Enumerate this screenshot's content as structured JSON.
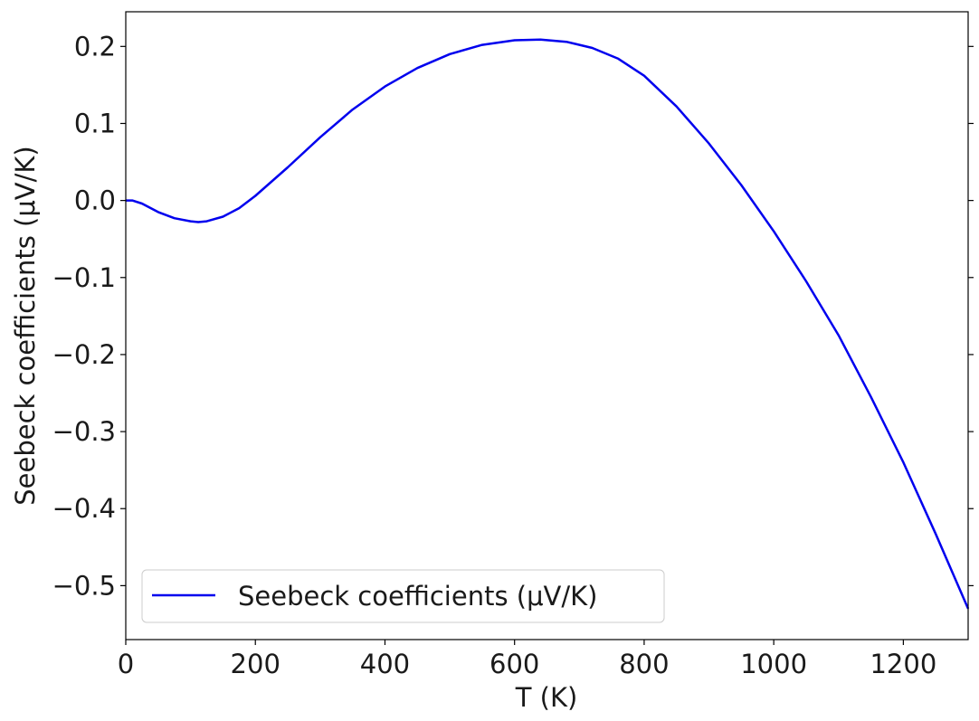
{
  "chart_data": {
    "type": "line",
    "xlabel": "T (K)",
    "ylabel": "Seebeck coefficients (μV/K)",
    "xlim": [
      0,
      1300
    ],
    "ylim": [
      -0.57,
      0.245
    ],
    "x_ticks": [
      0,
      200,
      400,
      600,
      800,
      1000,
      1200
    ],
    "x_tick_labels": [
      "0",
      "200",
      "400",
      "600",
      "800",
      "1000",
      "1200"
    ],
    "y_ticks": [
      0.2,
      0.1,
      0.0,
      -0.1,
      -0.2,
      -0.3,
      -0.4,
      -0.5
    ],
    "y_tick_labels": [
      "0.2",
      "0.1",
      "0.0",
      "−0.1",
      "−0.2",
      "−0.3",
      "−0.4",
      "−0.5"
    ],
    "grid": false,
    "legend_position": "lower-left",
    "series": [
      {
        "name": "Seebeck coefficients (μV/K)",
        "color": "#0000ee",
        "x": [
          0,
          10,
          25,
          50,
          75,
          100,
          112,
          125,
          150,
          175,
          200,
          250,
          300,
          350,
          400,
          450,
          500,
          550,
          600,
          640,
          680,
          720,
          760,
          800,
          850,
          900,
          950,
          1000,
          1050,
          1100,
          1150,
          1200,
          1250,
          1300
        ],
        "y": [
          0.0,
          0.0,
          -0.004,
          -0.015,
          -0.023,
          -0.027,
          -0.028,
          -0.027,
          -0.021,
          -0.01,
          0.006,
          0.043,
          0.082,
          0.118,
          0.148,
          0.172,
          0.19,
          0.202,
          0.208,
          0.209,
          0.206,
          0.198,
          0.184,
          0.162,
          0.122,
          0.074,
          0.02,
          -0.04,
          -0.105,
          -0.175,
          -0.255,
          -0.34,
          -0.433,
          -0.53
        ]
      }
    ]
  }
}
